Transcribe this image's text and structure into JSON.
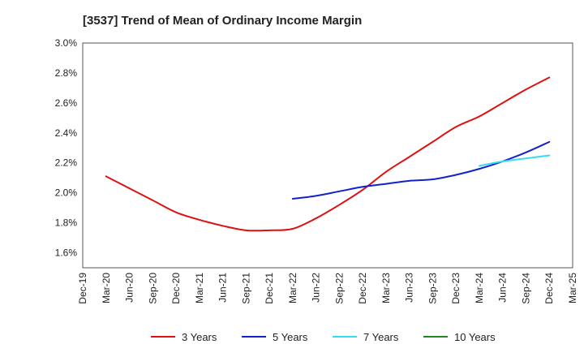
{
  "chart_data": {
    "type": "line",
    "title": "[3537]  Trend of Mean of Ordinary Income Margin",
    "xlabel": "",
    "ylabel": "",
    "x_categories": [
      "Dec-19",
      "Mar-20",
      "Jun-20",
      "Sep-20",
      "Dec-20",
      "Mar-21",
      "Jun-21",
      "Sep-21",
      "Dec-21",
      "Mar-22",
      "Jun-22",
      "Sep-22",
      "Dec-22",
      "Mar-23",
      "Jun-23",
      "Sep-23",
      "Dec-23",
      "Mar-24",
      "Jun-24",
      "Sep-24",
      "Dec-24",
      "Mar-25"
    ],
    "y_ticks": [
      "1.6%",
      "1.8%",
      "2.0%",
      "2.2%",
      "2.4%",
      "2.6%",
      "2.8%",
      "3.0%"
    ],
    "ylim": [
      1.5,
      3.0
    ],
    "y_unit": "%",
    "grid": true,
    "legend_position": "bottom",
    "series": [
      {
        "name": "3 Years",
        "color": "#dd1111",
        "values": [
          null,
          2.11,
          2.03,
          1.95,
          1.87,
          1.82,
          1.78,
          1.75,
          1.75,
          1.76,
          1.83,
          1.92,
          2.02,
          2.14,
          2.24,
          2.34,
          2.44,
          2.51,
          2.6,
          2.69,
          2.77,
          null
        ]
      },
      {
        "name": "5 Years",
        "color": "#1122cc",
        "values": [
          null,
          null,
          null,
          null,
          null,
          null,
          null,
          null,
          null,
          1.96,
          1.98,
          2.01,
          2.04,
          2.06,
          2.08,
          2.09,
          2.12,
          2.16,
          2.21,
          2.27,
          2.34,
          null
        ]
      },
      {
        "name": "7 Years",
        "color": "#33ddee",
        "values": [
          null,
          null,
          null,
          null,
          null,
          null,
          null,
          null,
          null,
          null,
          null,
          null,
          null,
          null,
          null,
          null,
          null,
          2.18,
          2.21,
          2.23,
          2.25,
          null
        ]
      },
      {
        "name": "10 Years",
        "color": "#228822",
        "values": [
          null,
          null,
          null,
          null,
          null,
          null,
          null,
          null,
          null,
          null,
          null,
          null,
          null,
          null,
          null,
          null,
          null,
          null,
          null,
          null,
          null,
          null
        ]
      }
    ]
  }
}
